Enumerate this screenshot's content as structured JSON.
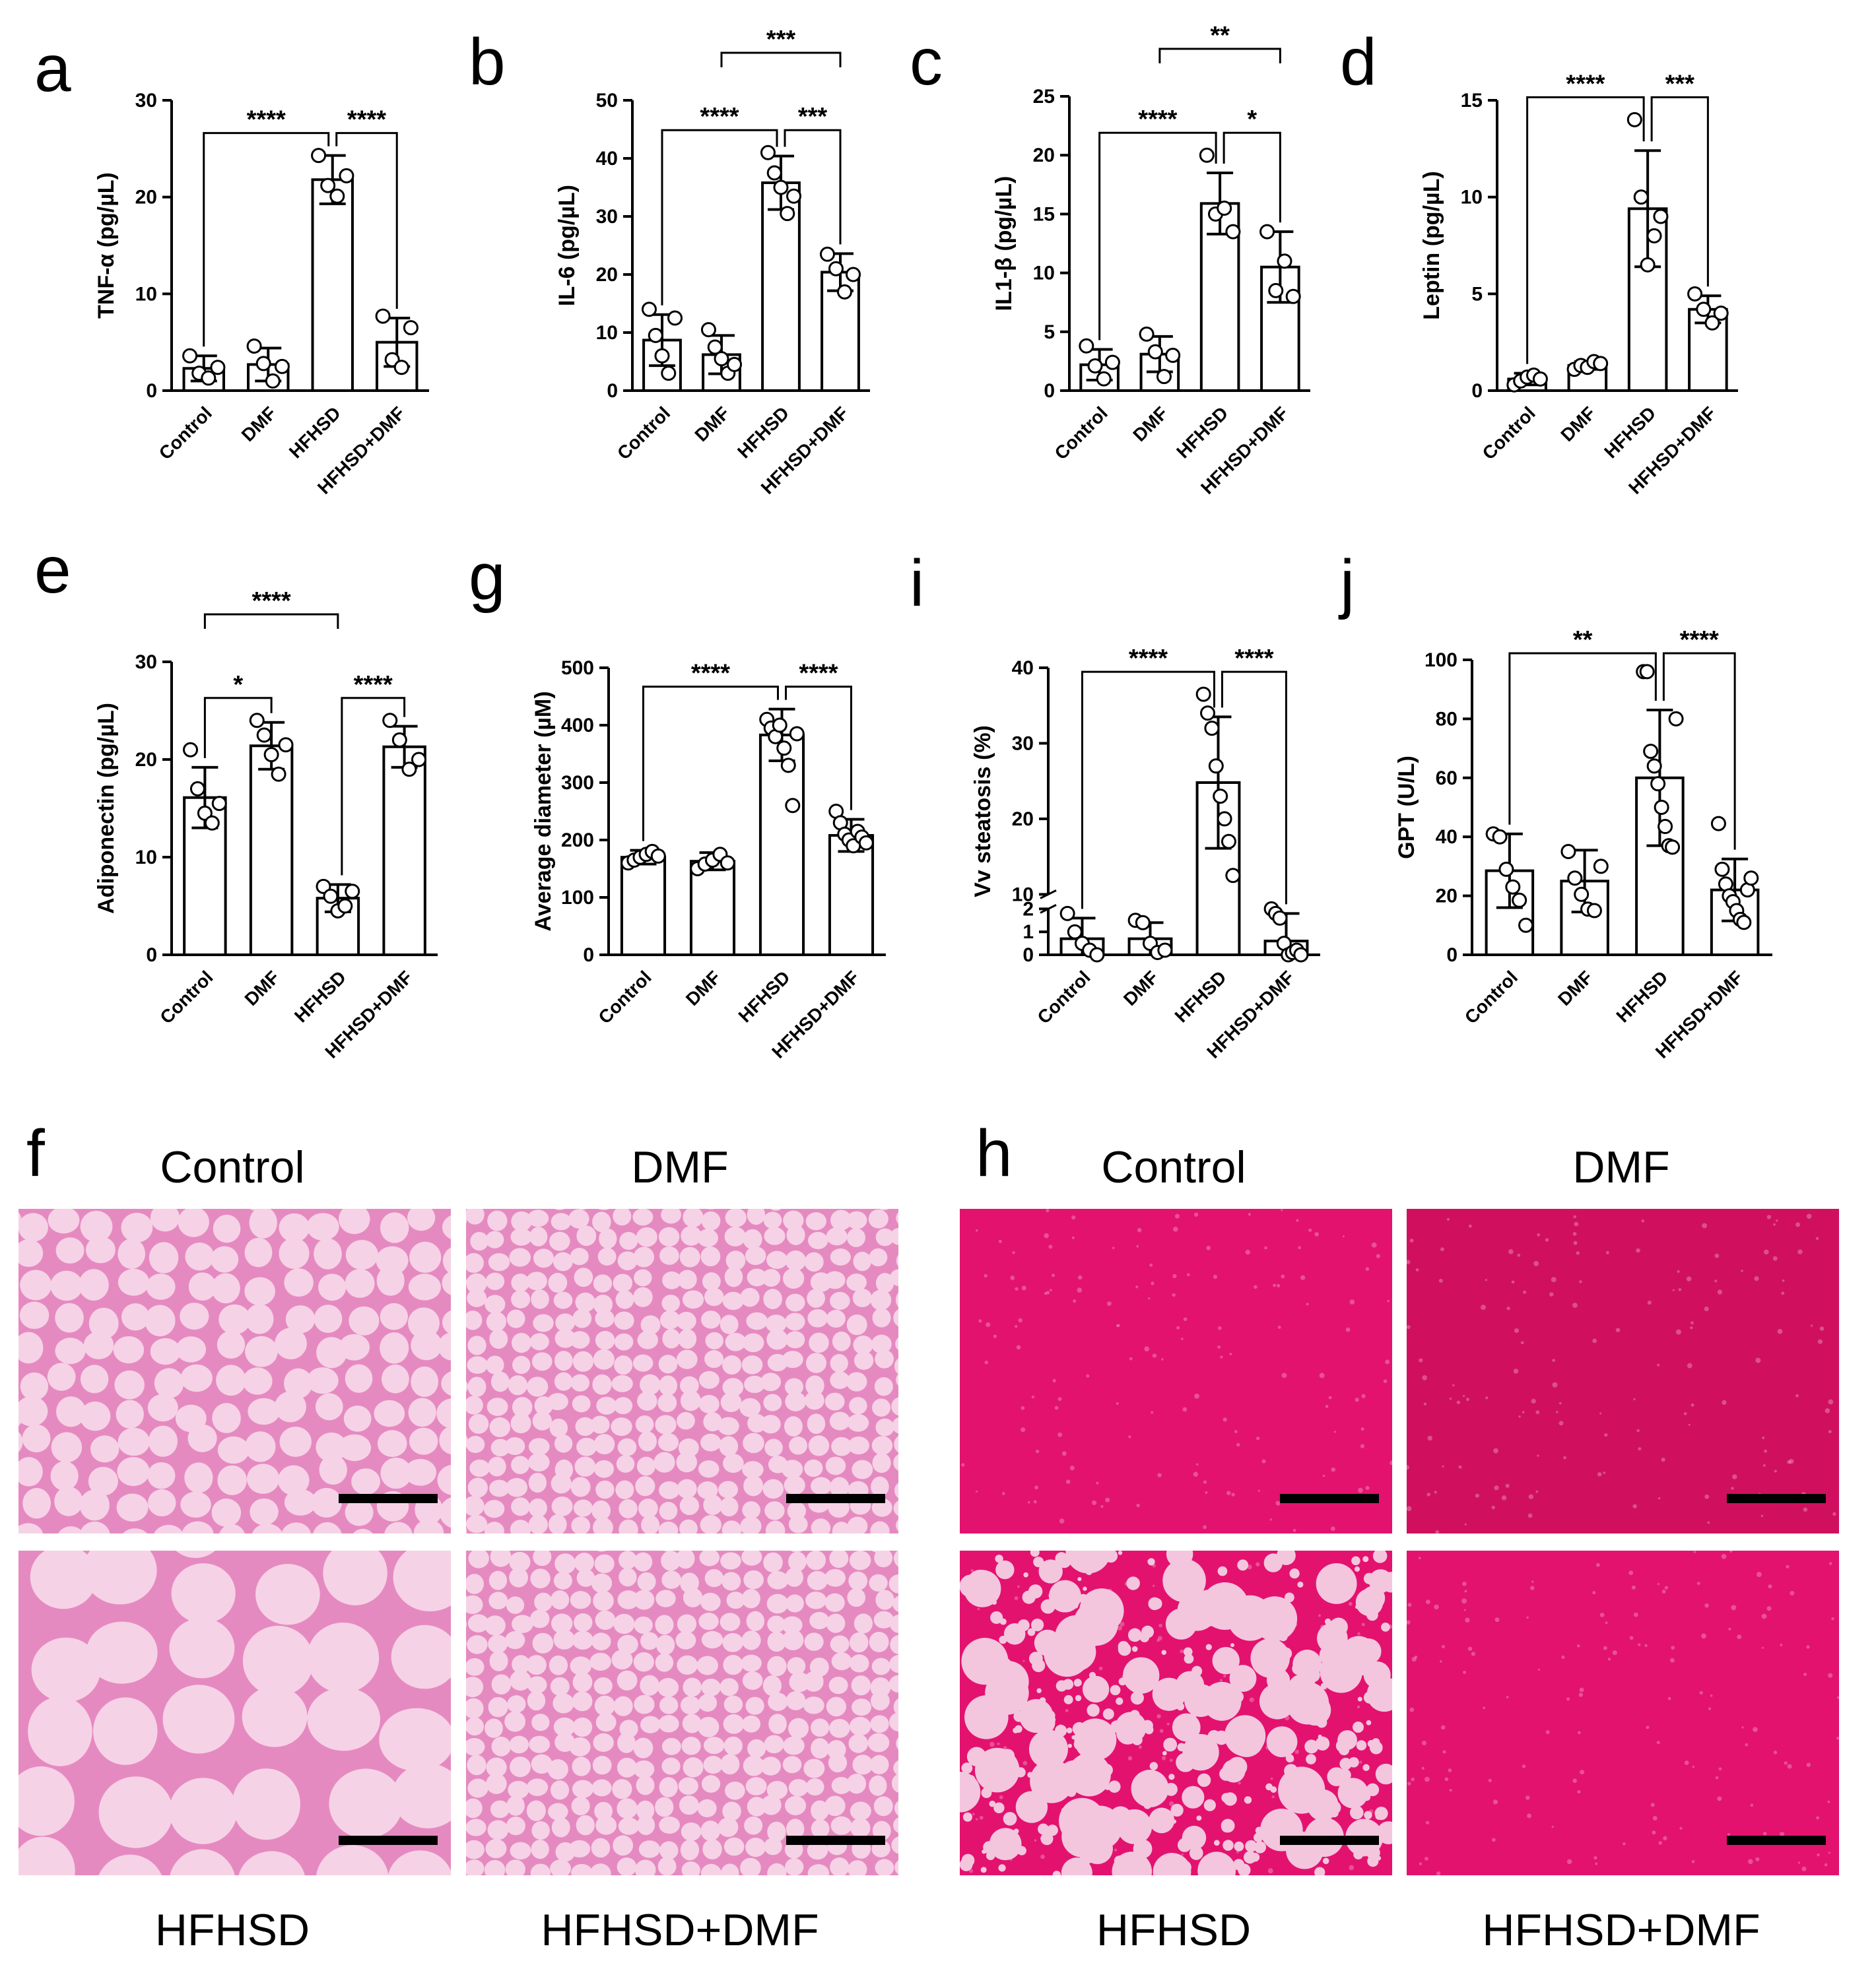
{
  "colors": {
    "bar_fill": "#ffffff",
    "stroke": "#000000",
    "adipose_background": "#f6d2e6",
    "adipose_membrane": "#e58ac0",
    "liver_stain": "#e3126f",
    "liver_stain_dark": "#d0105f",
    "liver_lipid_droplet": "#f3c6de",
    "scale_bar": "#000000"
  },
  "chart_data": [
    {
      "id": "a",
      "panel": "a",
      "type": "bar",
      "ylabel": "TNF-α (pg/µL)",
      "ylim": [
        0,
        30
      ],
      "yticks": [
        0,
        10,
        20,
        30
      ],
      "categories": [
        "Control",
        "DMF",
        "HFHSD",
        "HFHSD+DMF"
      ],
      "values": [
        2.3,
        2.7,
        21.8,
        5.0
      ],
      "sd": [
        1.3,
        1.7,
        2.5,
        2.5
      ],
      "points": [
        [
          3.6,
          1.8,
          1.3,
          2.4
        ],
        [
          4.6,
          2.8,
          1.0,
          2.5
        ],
        [
          24.3,
          21.2,
          20.1,
          22.2
        ],
        [
          7.7,
          3.2,
          2.4,
          6.5
        ]
      ],
      "significance": [
        {
          "from": 0,
          "to": 2,
          "label": "****",
          "level": 0
        },
        {
          "from": 2,
          "to": 3,
          "label": "****",
          "level": 0
        }
      ]
    },
    {
      "id": "b",
      "panel": "b",
      "type": "bar",
      "ylabel": "IL-6 (pg/µL)",
      "ylim": [
        0,
        50
      ],
      "yticks": [
        0,
        10,
        20,
        30,
        40,
        50
      ],
      "categories": [
        "Control",
        "DMF",
        "HFHSD",
        "HFHSD+DMF"
      ],
      "values": [
        8.7,
        6.2,
        35.8,
        20.4
      ],
      "sd": [
        4.4,
        3.3,
        4.6,
        3.2
      ],
      "points": [
        [
          14.0,
          9.5,
          6.0,
          3.0,
          12.5
        ],
        [
          10.5,
          7.5,
          5.5,
          3.0,
          4.5
        ],
        [
          41.0,
          37.5,
          35.0,
          30.5,
          33.5
        ],
        [
          23.5,
          21.0,
          17.0,
          20.0
        ]
      ],
      "significance": [
        {
          "from": 0,
          "to": 2,
          "label": "****",
          "level": 0
        },
        {
          "from": 2,
          "to": 3,
          "label": "***",
          "level": 0
        },
        {
          "from": 1,
          "to": 3,
          "label": "***",
          "level": 1
        }
      ]
    },
    {
      "id": "c",
      "panel": "c",
      "type": "bar",
      "ylabel": "IL1-β (pg/µL)",
      "ylim": [
        0,
        25
      ],
      "yticks": [
        0,
        5,
        10,
        15,
        20,
        25
      ],
      "categories": [
        "Control",
        "DMF",
        "HFHSD",
        "HFHSD+DMF"
      ],
      "values": [
        2.2,
        3.1,
        15.9,
        10.5
      ],
      "sd": [
        1.3,
        1.5,
        2.6,
        3.0
      ],
      "points": [
        [
          3.8,
          2.1,
          1.0,
          2.4
        ],
        [
          4.8,
          3.3,
          1.2,
          3.0
        ],
        [
          20.0,
          15.0,
          15.5,
          13.5
        ],
        [
          13.5,
          8.5,
          11.0,
          8.0
        ]
      ],
      "significance": [
        {
          "from": 0,
          "to": 2,
          "label": "****",
          "level": 0
        },
        {
          "from": 2,
          "to": 3,
          "label": "*",
          "level": 0
        },
        {
          "from": 1,
          "to": 3,
          "label": "**",
          "level": 1
        }
      ]
    },
    {
      "id": "d",
      "panel": "d",
      "type": "bar",
      "ylabel": "Leptin (pg/µL)",
      "ylim": [
        0,
        15
      ],
      "yticks": [
        0,
        5,
        10,
        15
      ],
      "categories": [
        "Control",
        "DMF",
        "HFHSD",
        "HFHSD+DMF"
      ],
      "values": [
        0.6,
        1.3,
        9.4,
        4.2
      ],
      "sd": [
        0.3,
        0.2,
        3.0,
        0.7
      ],
      "points": [
        [
          0.3,
          0.5,
          0.7,
          0.8,
          0.6
        ],
        [
          1.1,
          1.3,
          1.2,
          1.5,
          1.4
        ],
        [
          14.0,
          10.0,
          6.5,
          8.0,
          9.0
        ],
        [
          5.0,
          4.2,
          3.5,
          4.0
        ]
      ],
      "significance": [
        {
          "from": 0,
          "to": 2,
          "label": "****",
          "level": 0
        },
        {
          "from": 2,
          "to": 3,
          "label": "***",
          "level": 0
        }
      ]
    },
    {
      "id": "e",
      "panel": "e",
      "type": "bar",
      "ylabel": "Adiponectin (pg/µL)",
      "ylim": [
        0,
        30
      ],
      "yticks": [
        0,
        10,
        20,
        30
      ],
      "categories": [
        "Control",
        "DMF",
        "HFHSD",
        "HFHSD+DMF"
      ],
      "values": [
        16.1,
        21.4,
        5.8,
        21.3
      ],
      "sd": [
        3.1,
        2.4,
        1.4,
        2.1
      ],
      "points": [
        [
          21.0,
          17.0,
          14.5,
          13.5,
          15.5
        ],
        [
          24.0,
          22.5,
          20.5,
          18.5,
          21.5
        ],
        [
          7.0,
          6.0,
          4.5,
          5.0,
          6.5
        ],
        [
          24.0,
          22.0,
          19.0,
          20.0
        ]
      ],
      "significance": [
        {
          "from": 0,
          "to": 1,
          "label": "*",
          "level": 0
        },
        {
          "from": 2,
          "to": 3,
          "label": "****",
          "level": 0
        },
        {
          "from": 0,
          "to": 2,
          "label": "****",
          "level": 1
        }
      ]
    },
    {
      "id": "g",
      "panel": "g",
      "type": "bar",
      "ylabel": "Average diameter (µM)",
      "ylim": [
        0,
        500
      ],
      "yticks": [
        0,
        100,
        200,
        300,
        400,
        500
      ],
      "categories": [
        "Control",
        "DMF",
        "HFHSD",
        "HFHSD+DMF"
      ],
      "values": [
        170,
        163,
        383,
        208
      ],
      "sd": [
        12,
        15,
        45,
        28
      ],
      "points": [
        [
          160,
          165,
          170,
          175,
          180,
          172
        ],
        [
          150,
          158,
          165,
          175,
          160
        ],
        [
          410,
          395,
          380,
          400,
          360,
          330,
          260,
          385
        ],
        [
          250,
          230,
          210,
          200,
          190,
          215,
          205,
          195
        ]
      ],
      "significance": [
        {
          "from": 0,
          "to": 2,
          "label": "****",
          "level": 0
        },
        {
          "from": 2,
          "to": 3,
          "label": "****",
          "level": 0
        }
      ]
    },
    {
      "id": "i",
      "panel": "i",
      "type": "bar",
      "ylabel": "Vv steatosis (%)",
      "ylim": [
        0,
        40
      ],
      "yticks": [
        0,
        1,
        2,
        10,
        20,
        30,
        40
      ],
      "axis_break": [
        2,
        10
      ],
      "categories": [
        "Control",
        "DMF",
        "HFHSD",
        "HFHSD+DMF"
      ],
      "values": [
        0.7,
        0.7,
        24.8,
        0.6
      ],
      "sd": [
        0.9,
        0.7,
        8.7,
        1.2
      ],
      "points": [
        [
          1.8,
          1.0,
          0.5,
          0.2,
          0.0
        ],
        [
          1.5,
          1.4,
          0.5,
          0.1,
          0.2
        ],
        [
          36.5,
          34.0,
          32.0,
          27.0,
          23.0,
          20.0,
          17.0,
          12.5
        ],
        [
          2.0,
          1.8,
          1.6,
          0.5,
          0.0,
          0.1,
          0.2,
          0.0
        ]
      ],
      "significance": [
        {
          "from": 0,
          "to": 2,
          "label": "****",
          "level": 0
        },
        {
          "from": 2,
          "to": 3,
          "label": "****",
          "level": 0
        }
      ]
    },
    {
      "id": "j",
      "panel": "j",
      "type": "bar",
      "ylabel": "GPT (U/L)",
      "ylim": [
        0,
        100
      ],
      "yticks": [
        0,
        20,
        40,
        60,
        80,
        100
      ],
      "categories": [
        "Control",
        "DMF",
        "HFHSD",
        "HFHSD+DMF"
      ],
      "values": [
        28.5,
        25.0,
        60.0,
        22.0
      ],
      "sd": [
        12.5,
        10.5,
        23.0,
        10.5
      ],
      "points": [
        [
          41.0,
          40.0,
          29.0,
          23.0,
          18.5,
          10.0
        ],
        [
          35.0,
          26.0,
          20.5,
          15.5,
          15.0,
          30.0
        ],
        [
          96.0,
          96.0,
          69.0,
          64.0,
          58.0,
          50.0,
          43.5,
          37.0,
          36.5,
          80.0
        ],
        [
          44.5,
          29.0,
          24.0,
          20.0,
          18.0,
          15.0,
          12.0,
          11.0,
          22.0,
          26.0
        ]
      ],
      "significance": [
        {
          "from": 0,
          "to": 2,
          "label": "**",
          "level": 0
        },
        {
          "from": 2,
          "to": 3,
          "label": "****",
          "level": 0
        }
      ]
    }
  ],
  "micrographs": [
    {
      "panel": "f",
      "tissue": "adipose",
      "images": [
        {
          "caption": "Control",
          "cell_size": "medium"
        },
        {
          "caption": "DMF",
          "cell_size": "small"
        },
        {
          "caption": "HFHSD",
          "cell_size": "large"
        },
        {
          "caption": "HFHSD+DMF",
          "cell_size": "small"
        }
      ]
    },
    {
      "panel": "h",
      "tissue": "liver",
      "images": [
        {
          "caption": "Control",
          "steatosis": "none"
        },
        {
          "caption": "DMF",
          "steatosis": "none"
        },
        {
          "caption": "HFHSD",
          "steatosis": "severe"
        },
        {
          "caption": "HFHSD+DMF",
          "steatosis": "none"
        }
      ]
    }
  ]
}
